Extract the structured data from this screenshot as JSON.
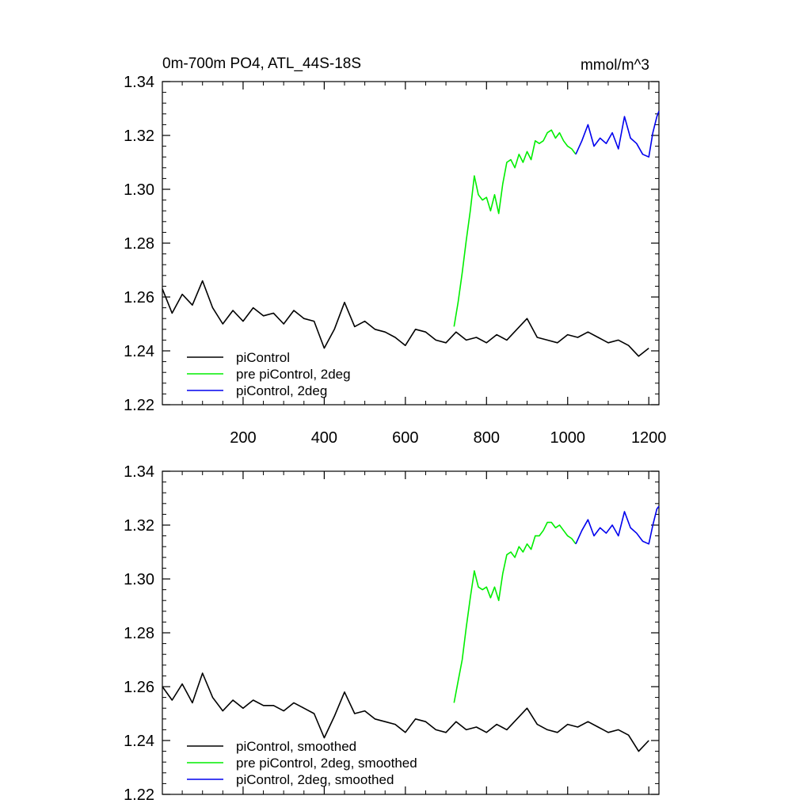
{
  "chart_data": [
    {
      "type": "line",
      "title": "0m-700m PO4, ATL_44S-18S",
      "units": "mmol/m^3",
      "xlabel": "",
      "ylabel": "",
      "xlim": [
        1,
        1225
      ],
      "ylim": [
        1.22,
        1.34
      ],
      "x_ticks": [
        200,
        400,
        600,
        800,
        1000,
        1200
      ],
      "y_ticks": [
        1.22,
        1.24,
        1.26,
        1.28,
        1.3,
        1.32,
        1.34
      ],
      "y_tick_labels": [
        "1.22",
        "1.24",
        "1.26",
        "1.28",
        "1.30",
        "1.32",
        "1.34"
      ],
      "x_tick_labels": [
        "200",
        "400",
        "600",
        "800",
        "1000",
        "1200"
      ],
      "show_x_tick_labels": true,
      "legend_placement": "bottom-left",
      "series": [
        {
          "name": "piControl",
          "color": "#000000",
          "x": [
            1,
            25,
            50,
            75,
            100,
            125,
            150,
            175,
            200,
            225,
            250,
            275,
            300,
            325,
            350,
            375,
            400,
            425,
            450,
            475,
            500,
            525,
            550,
            575,
            600,
            625,
            650,
            675,
            700,
            725,
            750,
            775,
            800,
            825,
            850,
            875,
            900,
            925,
            950,
            975,
            1000,
            1025,
            1050,
            1075,
            1100,
            1125,
            1150,
            1175,
            1200
          ],
          "y": [
            1.263,
            1.254,
            1.261,
            1.257,
            1.266,
            1.256,
            1.25,
            1.255,
            1.251,
            1.256,
            1.253,
            1.254,
            1.25,
            1.255,
            1.252,
            1.251,
            1.241,
            1.248,
            1.258,
            1.249,
            1.251,
            1.248,
            1.247,
            1.245,
            1.242,
            1.248,
            1.247,
            1.244,
            1.243,
            1.247,
            1.244,
            1.245,
            1.243,
            1.246,
            1.244,
            1.248,
            1.252,
            1.245,
            1.244,
            1.243,
            1.246,
            1.245,
            1.247,
            1.245,
            1.243,
            1.244,
            1.242,
            1.238,
            1.241
          ]
        },
        {
          "name": "pre piControl, 2deg",
          "color": "#00ee00",
          "x": [
            720,
            730,
            740,
            750,
            760,
            770,
            780,
            790,
            800,
            810,
            820,
            830,
            840,
            850,
            860,
            870,
            880,
            890,
            900,
            910,
            920,
            930,
            940,
            950,
            960,
            970,
            980,
            990,
            1000,
            1010,
            1020
          ],
          "y": [
            1.249,
            1.258,
            1.269,
            1.281,
            1.292,
            1.305,
            1.298,
            1.296,
            1.297,
            1.292,
            1.298,
            1.291,
            1.302,
            1.31,
            1.311,
            1.308,
            1.313,
            1.31,
            1.314,
            1.311,
            1.318,
            1.317,
            1.318,
            1.321,
            1.322,
            1.319,
            1.321,
            1.318,
            1.316,
            1.315,
            1.313
          ]
        },
        {
          "name": "piControl, 2deg",
          "color": "#0000ee",
          "x": [
            1020,
            1035,
            1050,
            1065,
            1080,
            1095,
            1110,
            1125,
            1140,
            1155,
            1170,
            1185,
            1200,
            1210,
            1220,
            1225
          ],
          "y": [
            1.313,
            1.318,
            1.324,
            1.316,
            1.319,
            1.317,
            1.321,
            1.315,
            1.327,
            1.319,
            1.317,
            1.313,
            1.312,
            1.321,
            1.327,
            1.329
          ]
        }
      ]
    },
    {
      "type": "line",
      "title": "",
      "units": "",
      "xlabel": "",
      "ylabel": "",
      "xlim": [
        1,
        1225
      ],
      "ylim": [
        1.22,
        1.34
      ],
      "x_ticks": [
        200,
        400,
        600,
        800,
        1000,
        1200
      ],
      "y_ticks": [
        1.22,
        1.24,
        1.26,
        1.28,
        1.3,
        1.32,
        1.34
      ],
      "y_tick_labels": [
        "1.22",
        "1.24",
        "1.26",
        "1.28",
        "1.30",
        "1.32",
        "1.34"
      ],
      "x_tick_labels": [],
      "show_x_tick_labels": false,
      "legend_placement": "bottom-left",
      "series": [
        {
          "name": "piControl, smoothed",
          "color": "#000000",
          "x": [
            1,
            25,
            50,
            75,
            100,
            125,
            150,
            175,
            200,
            225,
            250,
            275,
            300,
            325,
            350,
            375,
            400,
            425,
            450,
            475,
            500,
            525,
            550,
            575,
            600,
            625,
            650,
            675,
            700,
            725,
            750,
            775,
            800,
            825,
            850,
            875,
            900,
            925,
            950,
            975,
            1000,
            1025,
            1050,
            1075,
            1100,
            1125,
            1150,
            1175,
            1200
          ],
          "y": [
            1.26,
            1.255,
            1.261,
            1.254,
            1.265,
            1.256,
            1.251,
            1.255,
            1.252,
            1.255,
            1.253,
            1.253,
            1.251,
            1.254,
            1.252,
            1.25,
            1.241,
            1.249,
            1.258,
            1.25,
            1.251,
            1.248,
            1.247,
            1.246,
            1.243,
            1.248,
            1.247,
            1.244,
            1.243,
            1.247,
            1.244,
            1.245,
            1.243,
            1.246,
            1.244,
            1.248,
            1.252,
            1.246,
            1.244,
            1.243,
            1.246,
            1.245,
            1.247,
            1.245,
            1.243,
            1.244,
            1.242,
            1.236,
            1.24
          ]
        },
        {
          "name": "pre piControl, 2deg, smoothed",
          "color": "#00ee00",
          "x": [
            720,
            730,
            740,
            750,
            760,
            770,
            780,
            790,
            800,
            810,
            820,
            830,
            840,
            850,
            860,
            870,
            880,
            890,
            900,
            910,
            920,
            930,
            940,
            950,
            960,
            970,
            980,
            990,
            1000,
            1010,
            1020
          ],
          "y": [
            1.254,
            1.262,
            1.27,
            1.282,
            1.293,
            1.303,
            1.297,
            1.296,
            1.297,
            1.293,
            1.297,
            1.292,
            1.302,
            1.309,
            1.31,
            1.308,
            1.312,
            1.31,
            1.313,
            1.311,
            1.316,
            1.316,
            1.318,
            1.321,
            1.321,
            1.319,
            1.32,
            1.318,
            1.316,
            1.315,
            1.313
          ]
        },
        {
          "name": "piControl, 2deg, smoothed",
          "color": "#0000ee",
          "x": [
            1020,
            1035,
            1050,
            1065,
            1080,
            1095,
            1110,
            1125,
            1140,
            1155,
            1170,
            1185,
            1200,
            1210,
            1220,
            1225
          ],
          "y": [
            1.313,
            1.318,
            1.322,
            1.316,
            1.319,
            1.317,
            1.32,
            1.316,
            1.325,
            1.319,
            1.317,
            1.314,
            1.313,
            1.32,
            1.326,
            1.327
          ]
        }
      ]
    }
  ]
}
